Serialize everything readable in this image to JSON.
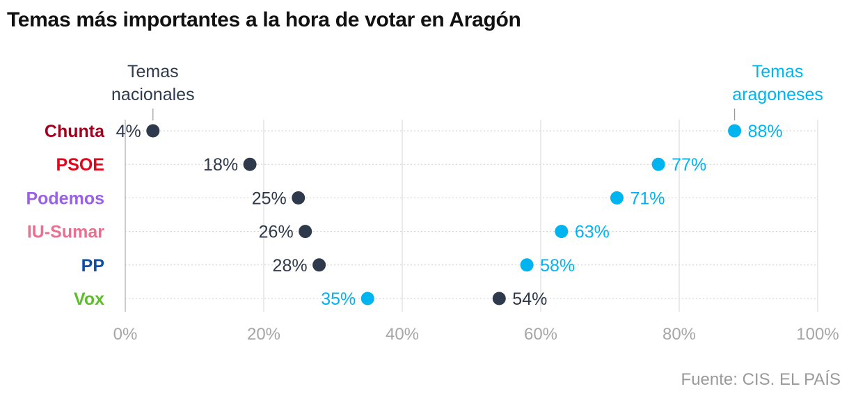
{
  "title": "Temas más importantes a la hora de votar en Aragón",
  "source": "Fuente: CIS. EL PAÍS",
  "colors": {
    "nacionales": "#2e3a4b",
    "aragoneses": "#00b4f0",
    "grid": "#dddddd",
    "axis": "#a6a6a6"
  },
  "chart_data": {
    "type": "scatter",
    "xlim": [
      0,
      100
    ],
    "x_ticks": [
      "0%",
      "20%",
      "40%",
      "60%",
      "80%",
      "100%"
    ],
    "x_tick_values": [
      0,
      20,
      40,
      60,
      80,
      100
    ],
    "grid": true,
    "categories": [
      "Chunta",
      "PSOE",
      "Podemos",
      "IU-Sumar",
      "PP",
      "Vox"
    ],
    "category_colors": [
      "#a3001e",
      "#e3051b",
      "#9a60e8",
      "#e87090",
      "#0d4fa6",
      "#5cbf2a"
    ],
    "series": [
      {
        "name": "Temas nacionales",
        "values": [
          4,
          18,
          25,
          26,
          28,
          54
        ],
        "labels": [
          "4%",
          "18%",
          "25%",
          "26%",
          "28%",
          "54%"
        ]
      },
      {
        "name": "Temas aragoneses",
        "values": [
          88,
          77,
          71,
          63,
          58,
          35
        ],
        "labels": [
          "88%",
          "77%",
          "71%",
          "63%",
          "58%",
          "35%"
        ]
      }
    ],
    "annotations": {
      "nacionales": [
        "Temas",
        "nacionales"
      ],
      "aragoneses": [
        "Temas",
        "aragoneses"
      ]
    }
  }
}
